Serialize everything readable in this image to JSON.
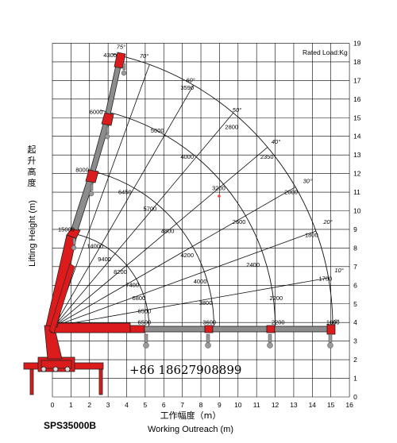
{
  "model": "SPS35000B",
  "rated_load_label": "Rated Load:Kg",
  "contact_phone": "+86 18627908899",
  "colors": {
    "boom_red": "#dc1c1c",
    "boom_gray": "#8c8c8c",
    "grid": "#000000",
    "line": "#111111"
  },
  "chart_data": {
    "type": "load-chart",
    "x_axis": {
      "label": "Working Outreach (m)",
      "label_cn": "工作幅度（m）",
      "range": [
        0,
        16
      ],
      "ticks": [
        0,
        1,
        2,
        3,
        4,
        5,
        6,
        7,
        8,
        9,
        10,
        11,
        12,
        13,
        14,
        15,
        16
      ]
    },
    "y_axis": {
      "label": "Lifting Height (m)",
      "label_cn": "起升高度",
      "range": [
        0,
        19
      ],
      "ticks": [
        0,
        1,
        2,
        3,
        4,
        5,
        6,
        7,
        8,
        9,
        10,
        11,
        12,
        13,
        14,
        15,
        16,
        17,
        18,
        19
      ]
    },
    "grid": true,
    "boom_angles": [
      {
        "label": "0°",
        "x": 15.15,
        "y": 3.95
      },
      {
        "label": "10°",
        "x": 15.2,
        "y": 6.7
      },
      {
        "label": "20°",
        "x": 14.6,
        "y": 9.3
      },
      {
        "label": "30°",
        "x": 13.5,
        "y": 11.5
      },
      {
        "label": "40°",
        "x": 11.8,
        "y": 13.6
      },
      {
        "label": "50°",
        "x": 9.7,
        "y": 15.3
      },
      {
        "label": "60°",
        "x": 7.2,
        "y": 16.9
      },
      {
        "label": "70°",
        "x": 4.7,
        "y": 18.2
      },
      {
        "label": "75°",
        "x": 3.45,
        "y": 18.7
      }
    ],
    "capacity_labels": [
      {
        "text": "4300",
        "x": 2.75,
        "y": 18.25
      },
      {
        "text": "3590",
        "x": 6.9,
        "y": 16.5
      },
      {
        "text": "2800",
        "x": 9.3,
        "y": 14.4
      },
      {
        "text": "2350",
        "x": 11.2,
        "y": 12.8
      },
      {
        "text": "2000",
        "x": 12.5,
        "y": 10.9
      },
      {
        "text": "1800",
        "x": 13.6,
        "y": 8.6
      },
      {
        "text": "1700",
        "x": 14.35,
        "y": 6.25
      },
      {
        "text": "1600",
        "x": 14.75,
        "y": 3.9
      },
      {
        "text": "6000",
        "x": 2.0,
        "y": 15.2
      },
      {
        "text": "5000",
        "x": 5.3,
        "y": 14.2
      },
      {
        "text": "4000",
        "x": 6.9,
        "y": 12.8
      },
      {
        "text": "3200",
        "x": 8.6,
        "y": 11.1
      },
      {
        "text": "2600",
        "x": 9.7,
        "y": 9.3
      },
      {
        "text": "2400",
        "x": 10.45,
        "y": 7.0
      },
      {
        "text": "2200",
        "x": 11.7,
        "y": 5.2
      },
      {
        "text": "2200",
        "x": 11.8,
        "y": 3.9
      },
      {
        "text": "8000",
        "x": 1.25,
        "y": 12.1
      },
      {
        "text": "6450",
        "x": 3.55,
        "y": 10.9
      },
      {
        "text": "5700",
        "x": 4.9,
        "y": 10.0
      },
      {
        "text": "4800",
        "x": 5.85,
        "y": 8.8
      },
      {
        "text": "4200",
        "x": 6.9,
        "y": 7.5
      },
      {
        "text": "4000",
        "x": 7.6,
        "y": 6.1
      },
      {
        "text": "3800",
        "x": 7.9,
        "y": 4.95
      },
      {
        "text": "3600",
        "x": 8.1,
        "y": 3.9
      },
      {
        "text": "15000",
        "x": 0.3,
        "y": 8.9
      },
      {
        "text": "14000",
        "x": 1.85,
        "y": 8.0
      },
      {
        "text": "9400",
        "x": 2.45,
        "y": 7.3
      },
      {
        "text": "8200",
        "x": 3.3,
        "y": 6.6
      },
      {
        "text": "7400",
        "x": 3.95,
        "y": 5.9
      },
      {
        "text": "6800",
        "x": 4.3,
        "y": 5.2
      },
      {
        "text": "6500",
        "x": 4.6,
        "y": 4.5
      },
      {
        "text": "6500",
        "x": 4.6,
        "y": 3.9
      }
    ],
    "radius_arcs": [
      15.0,
      11.9,
      8.6,
      5.1
    ],
    "arc_center": {
      "x": 0.1,
      "y": 3.8
    }
  }
}
